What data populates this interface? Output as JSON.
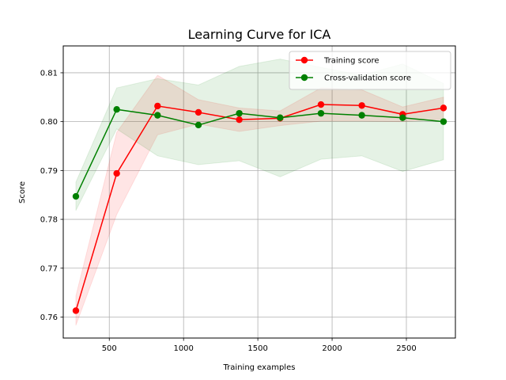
{
  "chart_data": {
    "type": "line",
    "title": "Learning Curve for ICA",
    "xlabel": "Training examples",
    "ylabel": "Score",
    "xlim": [
      190,
      2830
    ],
    "ylim": [
      0.7557,
      0.8155
    ],
    "grid": true,
    "legend_position": "top-right",
    "xticks": [
      500,
      1000,
      1500,
      2000,
      2500
    ],
    "xtick_labels": [
      "500",
      "1000",
      "1500",
      "2000",
      "2500"
    ],
    "yticks": [
      0.76,
      0.77,
      0.78,
      0.79,
      0.8,
      0.81
    ],
    "ytick_labels": [
      "0.76",
      "0.77",
      "0.78",
      "0.79",
      "0.80",
      "0.81"
    ],
    "x": [
      275,
      550,
      825,
      1100,
      1375,
      1650,
      1925,
      2200,
      2475,
      2750
    ],
    "series": [
      {
        "name": "Training score",
        "color": "#ff0000",
        "values": [
          0.7613,
          0.7894,
          0.8032,
          0.8019,
          0.8004,
          0.8007,
          0.8035,
          0.8033,
          0.8015,
          0.8028
        ],
        "lower": [
          0.7583,
          0.781,
          0.7973,
          0.7995,
          0.798,
          0.7992,
          0.8001,
          0.8001,
          0.8,
          0.8005
        ],
        "upper": [
          0.7643,
          0.7978,
          0.8095,
          0.8045,
          0.8028,
          0.8022,
          0.8069,
          0.8065,
          0.803,
          0.805
        ]
      },
      {
        "name": "Cross-validation score",
        "color": "#008000",
        "values": [
          0.7847,
          0.8025,
          0.8013,
          0.7993,
          0.8017,
          0.8008,
          0.8017,
          0.8013,
          0.8008,
          0.8
        ],
        "lower": [
          0.7818,
          0.7985,
          0.793,
          0.7912,
          0.792,
          0.7887,
          0.7923,
          0.793,
          0.7898,
          0.7922
        ],
        "upper": [
          0.7876,
          0.8069,
          0.8088,
          0.8075,
          0.8113,
          0.8128,
          0.8111,
          0.8095,
          0.8118,
          0.8078
        ]
      }
    ]
  }
}
